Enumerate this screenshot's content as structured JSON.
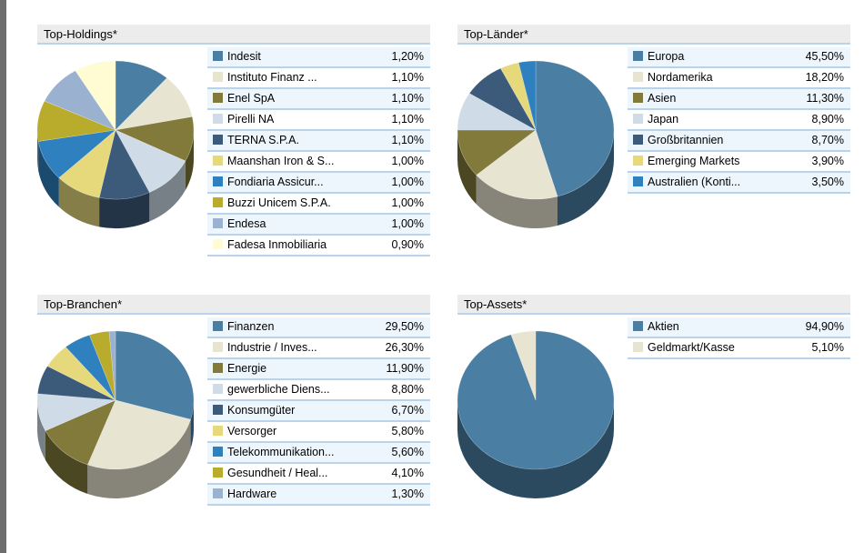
{
  "palette": [
    "#4a7ea3",
    "#e8e4d2",
    "#827a3b",
    "#cfdce8",
    "#3c5a7a",
    "#e5d97c",
    "#2f80bf",
    "#b9ab2b",
    "#9ab2cf",
    "#fffbd3"
  ],
  "chart_data": [
    {
      "type": "pie",
      "title": "Top-Holdings*",
      "labels": [
        "Indesit",
        "Instituto Finanz ...",
        "Enel SpA",
        "Pirelli NA",
        "TERNA S.P.A.",
        "Maanshan Iron & S...",
        "Fondiaria Assicur...",
        "Buzzi Unicem S.P.A.",
        "Endesa",
        "Fadesa Inmobiliaria"
      ],
      "values": [
        1.2,
        1.1,
        1.1,
        1.1,
        1.1,
        1.0,
        1.0,
        1.0,
        1.0,
        0.9
      ],
      "display": [
        "1,20%",
        "1,10%",
        "1,10%",
        "1,10%",
        "1,10%",
        "1,00%",
        "1,00%",
        "1,00%",
        "1,00%",
        "0,90%"
      ]
    },
    {
      "type": "pie",
      "title": "Top-Länder*",
      "labels": [
        "Europa",
        "Nordamerika",
        "Asien",
        "Japan",
        "Großbritannien",
        "Emerging Markets",
        "Australien (Konti..."
      ],
      "values": [
        45.5,
        18.2,
        11.3,
        8.9,
        8.7,
        3.9,
        3.5
      ],
      "display": [
        "45,50%",
        "18,20%",
        "11,30%",
        "8,90%",
        "8,70%",
        "3,90%",
        "3,50%"
      ]
    },
    {
      "type": "pie",
      "title": "Top-Branchen*",
      "labels": [
        "Finanzen",
        "Industrie / Inves...",
        "Energie",
        "gewerbliche Diens...",
        "Konsumgüter",
        "Versorger",
        "Telekommunikation...",
        "Gesundheit / Heal...",
        "Hardware"
      ],
      "values": [
        29.5,
        26.3,
        11.9,
        8.8,
        6.7,
        5.8,
        5.6,
        4.1,
        1.3
      ],
      "display": [
        "29,50%",
        "26,30%",
        "11,90%",
        "8,80%",
        "6,70%",
        "5,80%",
        "5,60%",
        "4,10%",
        "1,30%"
      ]
    },
    {
      "type": "pie",
      "title": "Top-Assets*",
      "labels": [
        "Aktien",
        "Geldmarkt/Kasse"
      ],
      "values": [
        94.9,
        5.1
      ],
      "display": [
        "94,90%",
        "5,10%"
      ]
    }
  ]
}
